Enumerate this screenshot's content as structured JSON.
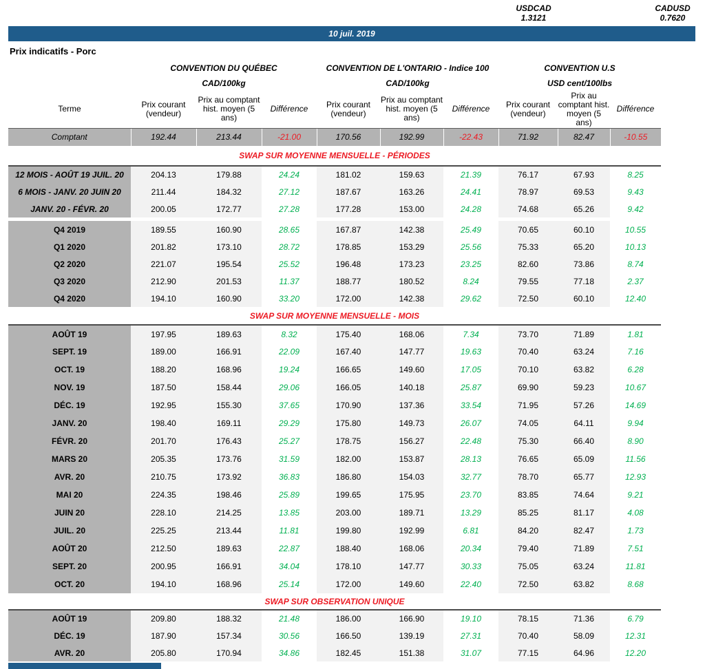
{
  "fx": [
    {
      "label": "USDCAD",
      "value": "1.3121"
    },
    {
      "label": "CADUSD",
      "value": "0.7620"
    }
  ],
  "banner_date": "10 juil. 2019",
  "title": "Prix indicatifs - Porc",
  "colors": {
    "banner_blue": "#1F5C8B",
    "section_red": "#EC1B24",
    "positive_green": "#00B050",
    "negative_red": "#EC1B24",
    "label_gray": "#B3B3B3",
    "cell_gray": "#F2F2F2"
  },
  "table": {
    "terme_header": "Terme",
    "conventions": [
      {
        "name": "CONVENTION DU QUÉBEC",
        "unit": "CAD/100kg"
      },
      {
        "name": "CONVENTION DE L'ONTARIO - Indice 100",
        "unit": "CAD/100kg"
      },
      {
        "name": "CONVENTION U.S",
        "unit": "USD cent/100lbs"
      }
    ],
    "col_headers": [
      "Prix courant (vendeur)",
      "Prix au comptant hist. moyen (5 ans)",
      "Différence"
    ],
    "spot_row": {
      "label": "Comptant",
      "values": [
        "192.44",
        "213.44",
        "-21.00",
        "170.56",
        "192.99",
        "-22.43",
        "71.92",
        "82.47",
        "-10.55"
      ]
    },
    "sections": [
      {
        "title": "SWAP SUR MOYENNE MENSUELLE - PÉRIODES",
        "groups": [
          {
            "rows": [
              {
                "label": "12 MOIS - AOÛT 19 JUIL. 20",
                "italic": true,
                "values": [
                  "204.13",
                  "179.88",
                  "24.24",
                  "181.02",
                  "159.63",
                  "21.39",
                  "76.17",
                  "67.93",
                  "8.25"
                ]
              },
              {
                "label": "6 MOIS - JANV. 20 JUIN 20",
                "italic": true,
                "values": [
                  "211.44",
                  "184.32",
                  "27.12",
                  "187.67",
                  "163.26",
                  "24.41",
                  "78.97",
                  "69.53",
                  "9.43"
                ]
              },
              {
                "label": "JANV. 20 - FÉVR. 20",
                "italic": true,
                "values": [
                  "200.05",
                  "172.77",
                  "27.28",
                  "177.28",
                  "153.00",
                  "24.28",
                  "74.68",
                  "65.26",
                  "9.42"
                ]
              }
            ]
          },
          {
            "rows": [
              {
                "label": "Q4 2019",
                "values": [
                  "189.55",
                  "160.90",
                  "28.65",
                  "167.87",
                  "142.38",
                  "25.49",
                  "70.65",
                  "60.10",
                  "10.55"
                ]
              },
              {
                "label": "Q1 2020",
                "values": [
                  "201.82",
                  "173.10",
                  "28.72",
                  "178.85",
                  "153.29",
                  "25.56",
                  "75.33",
                  "65.20",
                  "10.13"
                ]
              },
              {
                "label": "Q2 2020",
                "values": [
                  "221.07",
                  "195.54",
                  "25.52",
                  "196.48",
                  "173.23",
                  "23.25",
                  "82.60",
                  "73.86",
                  "8.74"
                ]
              },
              {
                "label": "Q3 2020",
                "values": [
                  "212.90",
                  "201.53",
                  "11.37",
                  "188.77",
                  "180.52",
                  "8.24",
                  "79.55",
                  "77.18",
                  "2.37"
                ]
              },
              {
                "label": "Q4 2020",
                "values": [
                  "194.10",
                  "160.90",
                  "33.20",
                  "172.00",
                  "142.38",
                  "29.62",
                  "72.50",
                  "60.10",
                  "12.40"
                ]
              }
            ]
          }
        ]
      },
      {
        "title": "SWAP SUR MOYENNE MENSUELLE - MOIS",
        "groups": [
          {
            "rows": [
              {
                "label": "AOÛT 19",
                "values": [
                  "197.95",
                  "189.63",
                  "8.32",
                  "175.40",
                  "168.06",
                  "7.34",
                  "73.70",
                  "71.89",
                  "1.81"
                ]
              },
              {
                "label": "SEPT. 19",
                "values": [
                  "189.00",
                  "166.91",
                  "22.09",
                  "167.40",
                  "147.77",
                  "19.63",
                  "70.40",
                  "63.24",
                  "7.16"
                ]
              },
              {
                "label": "OCT. 19",
                "values": [
                  "188.20",
                  "168.96",
                  "19.24",
                  "166.65",
                  "149.60",
                  "17.05",
                  "70.10",
                  "63.82",
                  "6.28"
                ]
              },
              {
                "label": "NOV. 19",
                "values": [
                  "187.50",
                  "158.44",
                  "29.06",
                  "166.05",
                  "140.18",
                  "25.87",
                  "69.90",
                  "59.23",
                  "10.67"
                ]
              },
              {
                "label": "DÉC. 19",
                "values": [
                  "192.95",
                  "155.30",
                  "37.65",
                  "170.90",
                  "137.36",
                  "33.54",
                  "71.95",
                  "57.26",
                  "14.69"
                ]
              },
              {
                "label": "JANV. 20",
                "values": [
                  "198.40",
                  "169.11",
                  "29.29",
                  "175.80",
                  "149.73",
                  "26.07",
                  "74.05",
                  "64.11",
                  "9.94"
                ]
              },
              {
                "label": "FÉVR. 20",
                "values": [
                  "201.70",
                  "176.43",
                  "25.27",
                  "178.75",
                  "156.27",
                  "22.48",
                  "75.30",
                  "66.40",
                  "8.90"
                ]
              },
              {
                "label": "MARS 20",
                "values": [
                  "205.35",
                  "173.76",
                  "31.59",
                  "182.00",
                  "153.87",
                  "28.13",
                  "76.65",
                  "65.09",
                  "11.56"
                ]
              },
              {
                "label": "AVR. 20",
                "values": [
                  "210.75",
                  "173.92",
                  "36.83",
                  "186.80",
                  "154.03",
                  "32.77",
                  "78.70",
                  "65.77",
                  "12.93"
                ]
              },
              {
                "label": "MAI 20",
                "values": [
                  "224.35",
                  "198.46",
                  "25.89",
                  "199.65",
                  "175.95",
                  "23.70",
                  "83.85",
                  "74.64",
                  "9.21"
                ]
              },
              {
                "label": "JUIN 20",
                "values": [
                  "228.10",
                  "214.25",
                  "13.85",
                  "203.00",
                  "189.71",
                  "13.29",
                  "85.25",
                  "81.17",
                  "4.08"
                ]
              },
              {
                "label": "JUIL. 20",
                "values": [
                  "225.25",
                  "213.44",
                  "11.81",
                  "199.80",
                  "192.99",
                  "6.81",
                  "84.20",
                  "82.47",
                  "1.73"
                ]
              },
              {
                "label": "AOÛT 20",
                "values": [
                  "212.50",
                  "189.63",
                  "22.87",
                  "188.40",
                  "168.06",
                  "20.34",
                  "79.40",
                  "71.89",
                  "7.51"
                ]
              },
              {
                "label": "SEPT. 20",
                "values": [
                  "200.95",
                  "166.91",
                  "34.04",
                  "178.10",
                  "147.77",
                  "30.33",
                  "75.05",
                  "63.24",
                  "11.81"
                ]
              },
              {
                "label": "OCT. 20",
                "values": [
                  "194.10",
                  "168.96",
                  "25.14",
                  "172.00",
                  "149.60",
                  "22.40",
                  "72.50",
                  "63.82",
                  "8.68"
                ]
              }
            ]
          }
        ]
      },
      {
        "title": "SWAP SUR OBSERVATION UNIQUE",
        "groups": [
          {
            "rows": [
              {
                "label": "AOÛT 19",
                "values": [
                  "209.80",
                  "188.32",
                  "21.48",
                  "186.00",
                  "166.90",
                  "19.10",
                  "78.15",
                  "71.36",
                  "6.79"
                ]
              },
              {
                "label": "DÉC. 19",
                "values": [
                  "187.90",
                  "157.34",
                  "30.56",
                  "166.50",
                  "139.19",
                  "27.31",
                  "70.40",
                  "58.09",
                  "12.31"
                ]
              },
              {
                "label": "AVR. 20",
                "values": [
                  "205.80",
                  "170.94",
                  "34.86",
                  "182.45",
                  "151.38",
                  "31.07",
                  "77.15",
                  "64.96",
                  "12.20"
                ]
              }
            ]
          }
        ]
      }
    ]
  }
}
